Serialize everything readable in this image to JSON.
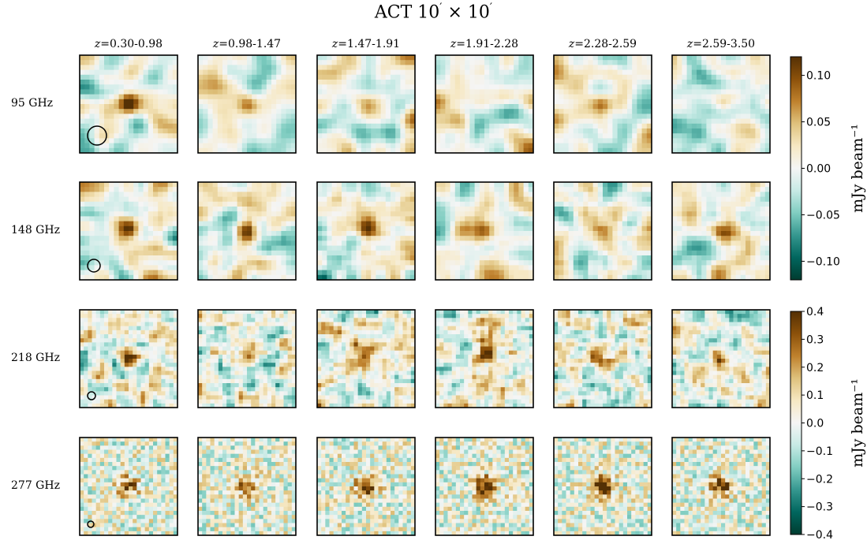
{
  "figure": {
    "title": "ACT 10′ × 10′",
    "title_prefix": "ACT 10",
    "title_mid": " × 10"
  },
  "chart_data": {
    "type": "heatmap",
    "title": "ACT 10′ × 10′",
    "z_prefix": "z",
    "columns": [
      "=0.30-0.98",
      "=0.98-1.47",
      "=1.47-1.91",
      "=1.91-2.28",
      "=2.28-2.59",
      "=2.59-3.50"
    ],
    "rows": [
      "95 GHz",
      "148 GHz",
      "218 GHz",
      "277 GHz"
    ],
    "colorbars": [
      {
        "rows": [
          "95 GHz",
          "148 GHz"
        ],
        "label": "mJy beam⁻¹",
        "range": [
          -0.12,
          0.12
        ],
        "ticks": [
          0.1,
          0.05,
          0.0,
          -0.05,
          -0.1
        ],
        "tick_labels": [
          "0.10",
          "0.05",
          "0.00",
          "−0.05",
          "−0.10"
        ]
      },
      {
        "rows": [
          "218 GHz",
          "277 GHz"
        ],
        "label": "mJy beam⁻¹",
        "range": [
          -0.4,
          0.4
        ],
        "ticks": [
          0.4,
          0.3,
          0.2,
          0.1,
          0.0,
          -0.1,
          -0.2,
          -0.3,
          -0.4
        ],
        "tick_labels": [
          "0.4",
          "0.3",
          "0.2",
          "0.1",
          "0.0",
          "−0.1",
          "−0.2",
          "−0.3",
          "−0.4"
        ]
      }
    ],
    "colormap": "BrBG_r",
    "beam_circles": true,
    "grid": false,
    "peak_at_center": [
      [
        0.11,
        0.04,
        0.05,
        0.02,
        0.07,
        0.04
      ],
      [
        0.1,
        0.08,
        0.09,
        0.1,
        0.1,
        0.1
      ],
      [
        0.2,
        0.12,
        0.3,
        0.3,
        0.32,
        0.38
      ],
      [
        0.3,
        0.28,
        0.4,
        0.4,
        0.4,
        0.4
      ]
    ]
  }
}
